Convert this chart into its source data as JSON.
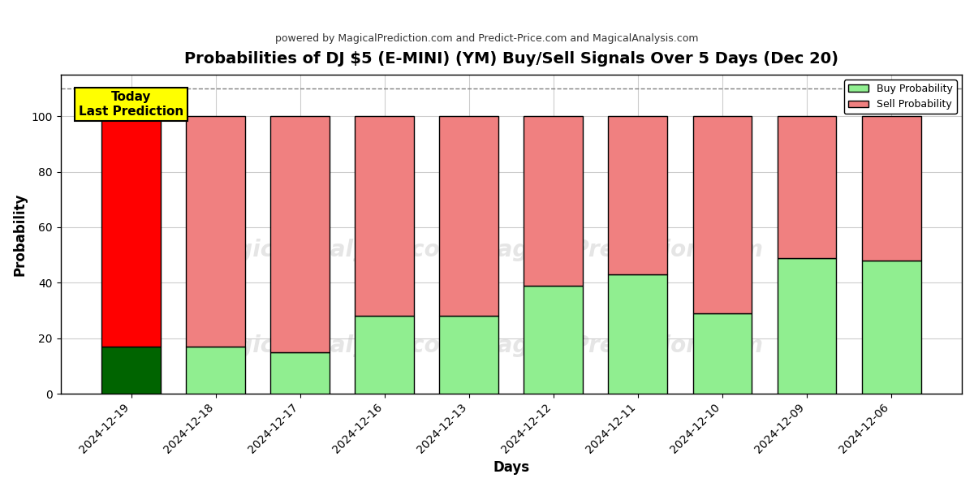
{
  "title": "Probabilities of DJ $5 (E-MINI) (YM) Buy/Sell Signals Over 5 Days (Dec 20)",
  "subtitle": "powered by MagicalPrediction.com and Predict-Price.com and MagicalAnalysis.com",
  "xlabel": "Days",
  "ylabel": "Probability",
  "categories": [
    "2024-12-19",
    "2024-12-18",
    "2024-12-17",
    "2024-12-16",
    "2024-12-13",
    "2024-12-12",
    "2024-12-11",
    "2024-12-10",
    "2024-12-09",
    "2024-12-06"
  ],
  "buy_values": [
    17,
    17,
    15,
    28,
    28,
    39,
    43,
    29,
    49,
    48
  ],
  "sell_values": [
    83,
    83,
    85,
    72,
    72,
    61,
    57,
    71,
    51,
    52
  ],
  "today_buy_color": "#006400",
  "today_sell_color": "#FF0000",
  "buy_color": "#90EE90",
  "sell_color": "#F08080",
  "today_annotation_text": "Today\nLast Prediction",
  "today_annotation_bg": "#FFFF00",
  "dashed_line_y": 110,
  "ylim": [
    0,
    115
  ],
  "yticks": [
    0,
    20,
    40,
    60,
    80,
    100
  ],
  "watermark_color": "#aaaaaa",
  "bar_edgecolor": "#000000",
  "bar_linewidth": 1.0,
  "grid_color": "#cccccc",
  "legend_buy_label": "Buy Probability",
  "legend_sell_label": "Sell Probability"
}
